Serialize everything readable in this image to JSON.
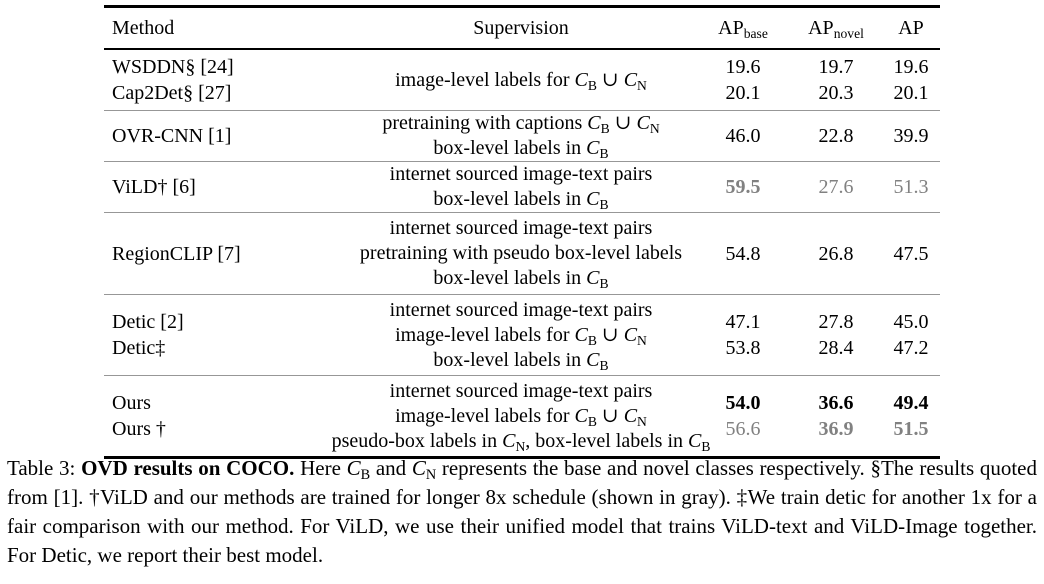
{
  "table": {
    "headers": {
      "method": "Method",
      "supervision": "Supervision",
      "ap_base": "AP{sub:base}",
      "ap_novel": "AP{sub:novel}",
      "ap": "AP"
    },
    "groups": [
      {
        "methods": [
          "WSDDN§ [24]",
          "Cap2Det§ [27]"
        ],
        "supervision": [
          "image-level labels for {C}{sub:B} ∪ {C}{sub:N}"
        ],
        "rows": [
          {
            "ap_base": "19.6",
            "ap_novel": "19.7",
            "ap": "19.6",
            "cls_base": "",
            "cls_novel": "",
            "cls_ap": ""
          },
          {
            "ap_base": "20.1",
            "ap_novel": "20.3",
            "ap": "20.1",
            "cls_base": "",
            "cls_novel": "",
            "cls_ap": ""
          }
        ]
      },
      {
        "methods": [
          "OVR-CNN [1]"
        ],
        "supervision": [
          "pretraining with captions {C}{sub:B} ∪ {C}{sub:N}",
          "box-level labels in {C}{sub:B}"
        ],
        "rows": [
          {
            "ap_base": "46.0",
            "ap_novel": "22.8",
            "ap": "39.9",
            "cls_base": "",
            "cls_novel": "",
            "cls_ap": ""
          }
        ]
      },
      {
        "methods": [
          "ViLD† [6]"
        ],
        "supervision": [
          "internet sourced image-text pairs",
          "box-level labels in {C}{sub:B}"
        ],
        "rows": [
          {
            "ap_base": "59.5",
            "ap_novel": "27.6",
            "ap": "51.3",
            "cls_base": "bold gray",
            "cls_novel": "gray",
            "cls_ap": "gray"
          }
        ]
      },
      {
        "methods": [
          "RegionCLIP [7]"
        ],
        "supervision": [
          "internet sourced image-text pairs",
          "pretraining with pseudo box-level labels",
          "box-level labels in {C}{sub:B}"
        ],
        "rows": [
          {
            "ap_base": "54.8",
            "ap_novel": "26.8",
            "ap": "47.5",
            "cls_base": "",
            "cls_novel": "",
            "cls_ap": ""
          }
        ]
      },
      {
        "methods": [
          "Detic [2]",
          "Detic‡"
        ],
        "supervision": [
          "internet sourced image-text pairs",
          "image-level labels for {C}{sub:B} ∪ {C}{sub:N}",
          "box-level labels in {C}{sub:B}"
        ],
        "rows": [
          {
            "ap_base": "47.1",
            "ap_novel": "27.8",
            "ap": "45.0",
            "cls_base": "",
            "cls_novel": "",
            "cls_ap": ""
          },
          {
            "ap_base": "53.8",
            "ap_novel": "28.4",
            "ap": "47.2",
            "cls_base": "",
            "cls_novel": "",
            "cls_ap": ""
          }
        ]
      },
      {
        "methods": [
          "Ours",
          "Ours †"
        ],
        "supervision": [
          "internet sourced image-text pairs",
          "image-level labels for {C}{sub:B} ∪ {C}{sub:N}",
          "pseudo-box labels in {C}{sub:N}, box-level labels in {C}{sub:B}"
        ],
        "rows": [
          {
            "ap_base": "54.0",
            "ap_novel": "36.6",
            "ap": "49.4",
            "cls_base": "bold",
            "cls_novel": "bold",
            "cls_ap": "bold"
          },
          {
            "ap_base": "56.6",
            "ap_novel": "36.9",
            "ap": "51.5",
            "cls_base": "gray",
            "cls_novel": "bold gray",
            "cls_ap": "bold gray"
          }
        ]
      }
    ]
  },
  "caption": {
    "text": "Table 3: {b}OVD results on COCO.{/b} Here {C}{sub:B} and {C}{sub:N} represents the base and novel classes respectively. §The results quoted from [1]. †ViLD and our methods are trained for longer 8x schedule (shown in gray). ‡We train detic for another 1x for a fair comparison with our method. For ViLD, we use their unified model that trains ViLD-text and ViLD-Image together. For Detic, we report their best model."
  },
  "colors": {
    "gray_value": "#818181",
    "rule_black": "#000000",
    "separator_gray": "#979797"
  }
}
